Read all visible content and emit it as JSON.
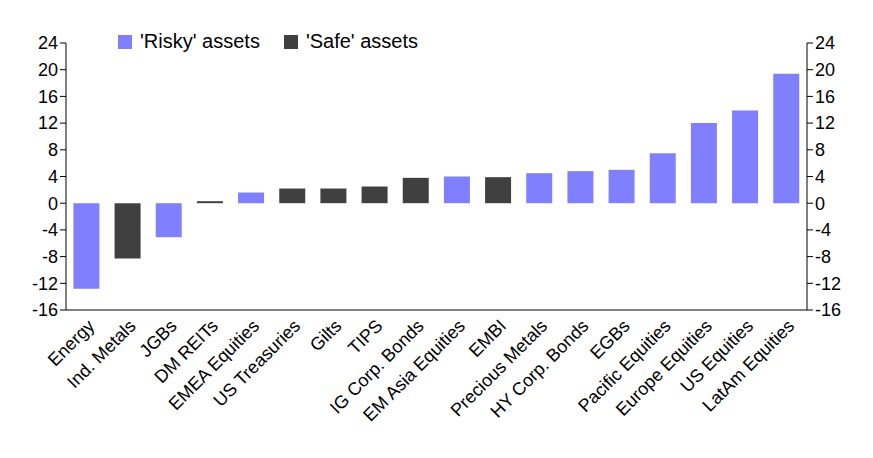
{
  "chart_data": {
    "type": "bar",
    "stacked": true,
    "legend": "top-left",
    "grid": false,
    "categories": [
      "Energy",
      "Ind. Metals",
      "JGBs",
      "DM REITs",
      "EMEA Equities",
      "US Treasuries",
      "Gilts",
      "TIPS",
      "IG Corp. Bonds",
      "EM Asia Equities",
      "EMBI",
      "Precious Metals",
      "HY Corp. Bonds",
      "EGBs",
      "Pacific Equities",
      "Europe Equities",
      "US Equities",
      "LatAm Equities"
    ],
    "series": [
      {
        "name": "'Risky' assets",
        "color": "#8080ff",
        "values": [
          -12.8,
          null,
          -5.1,
          null,
          1.6,
          null,
          null,
          null,
          null,
          4.0,
          null,
          4.5,
          4.8,
          5.0,
          7.5,
          12.0,
          13.9,
          19.4
        ]
      },
      {
        "name": "'Safe' assets",
        "color": "#404040",
        "values": [
          null,
          -8.3,
          null,
          0.3,
          null,
          2.2,
          2.2,
          2.5,
          3.8,
          null,
          3.9,
          null,
          null,
          null,
          null,
          null,
          null,
          null
        ]
      }
    ],
    "ylim": [
      -16,
      24
    ],
    "yticks": [
      -16,
      -12,
      -8,
      -4,
      0,
      4,
      8,
      12,
      16,
      20,
      24
    ],
    "y2lim": [
      -16,
      24
    ],
    "y2ticks": [
      -16,
      -12,
      -8,
      -4,
      0,
      4,
      8,
      12,
      16,
      20,
      24
    ]
  }
}
